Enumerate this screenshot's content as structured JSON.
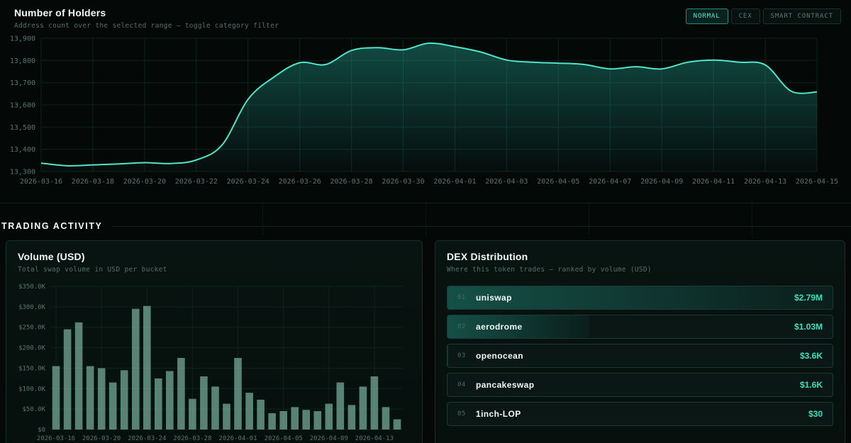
{
  "holders": {
    "title": "Number of Holders",
    "subtitle": "Address count over the selected range — toggle category filter",
    "filters": [
      {
        "label": "NORMAL",
        "active": true
      },
      {
        "label": "CEX",
        "active": false
      },
      {
        "label": "SMART CONTRACT",
        "active": false
      }
    ]
  },
  "trading": {
    "section_title": "TRADING ACTIVITY",
    "volume": {
      "title": "Volume (USD)",
      "subtitle": "Total swap volume in USD per bucket"
    },
    "dex": {
      "title": "DEX Distribution",
      "subtitle": "Where this token trades — ranked by volume (USD)",
      "rows": [
        {
          "rank": "01",
          "name": "uniswap",
          "value": "$2.79M",
          "volume_usd": 2790000
        },
        {
          "rank": "02",
          "name": "aerodrome",
          "value": "$1.03M",
          "volume_usd": 1030000
        },
        {
          "rank": "03",
          "name": "openocean",
          "value": "$3.6K",
          "volume_usd": 3600
        },
        {
          "rank": "04",
          "name": "pancakeswap",
          "value": "$1.6K",
          "volume_usd": 1600
        },
        {
          "rank": "05",
          "name": "1inch-LOP",
          "value": "$30",
          "volume_usd": 30
        }
      ]
    }
  },
  "colors": {
    "accent": "#2dd4bf",
    "line": "#4fe6c8",
    "bar": "#9ce0cb",
    "value_text": "#2fe5bd",
    "background": "#040908"
  },
  "chart_data": [
    {
      "type": "area",
      "title": "Number of Holders",
      "xlabel": "",
      "ylabel": "",
      "ylim": [
        13300,
        13900
      ],
      "ytick": 100,
      "xtick_every": 2,
      "grid": true,
      "legend": "none",
      "x": [
        "2026-03-16",
        "2026-03-17",
        "2026-03-18",
        "2026-03-19",
        "2026-03-20",
        "2026-03-21",
        "2026-03-22",
        "2026-03-23",
        "2026-03-24",
        "2026-03-25",
        "2026-03-26",
        "2026-03-27",
        "2026-03-28",
        "2026-03-29",
        "2026-03-30",
        "2026-03-31",
        "2026-04-01",
        "2026-04-02",
        "2026-04-03",
        "2026-04-04",
        "2026-04-05",
        "2026-04-06",
        "2026-04-07",
        "2026-04-08",
        "2026-04-09",
        "2026-04-10",
        "2026-04-11",
        "2026-04-12",
        "2026-04-13",
        "2026-04-14",
        "2026-04-15"
      ],
      "values": [
        13338,
        13326,
        13330,
        13334,
        13340,
        13336,
        13352,
        13420,
        13625,
        13725,
        13790,
        13782,
        13845,
        13858,
        13848,
        13878,
        13862,
        13838,
        13802,
        13792,
        13788,
        13782,
        13762,
        13772,
        13762,
        13792,
        13802,
        13792,
        13780,
        13662,
        13658
      ]
    },
    {
      "type": "bar",
      "title": "Volume (USD)",
      "xlabel": "",
      "ylabel": "",
      "ylim": [
        0,
        350000
      ],
      "ytick": 50000,
      "xtick_every": 4,
      "grid": true,
      "legend": "none",
      "x": [
        "2026-03-16",
        "2026-03-17",
        "2026-03-18",
        "2026-03-19",
        "2026-03-20",
        "2026-03-21",
        "2026-03-22",
        "2026-03-23",
        "2026-03-24",
        "2026-03-25",
        "2026-03-26",
        "2026-03-27",
        "2026-03-28",
        "2026-03-29",
        "2026-03-30",
        "2026-03-31",
        "2026-04-01",
        "2026-04-02",
        "2026-04-03",
        "2026-04-04",
        "2026-04-05",
        "2026-04-06",
        "2026-04-07",
        "2026-04-08",
        "2026-04-09",
        "2026-04-10",
        "2026-04-11",
        "2026-04-12",
        "2026-04-13",
        "2026-04-14",
        "2026-04-15"
      ],
      "values": [
        155000,
        245000,
        262000,
        155000,
        150000,
        115000,
        145000,
        295000,
        302000,
        125000,
        143000,
        175000,
        75000,
        130000,
        105000,
        63000,
        175000,
        90000,
        73000,
        40000,
        45000,
        55000,
        48000,
        45000,
        63000,
        115000,
        60000,
        105000,
        130000,
        55000,
        25000
      ]
    }
  ]
}
